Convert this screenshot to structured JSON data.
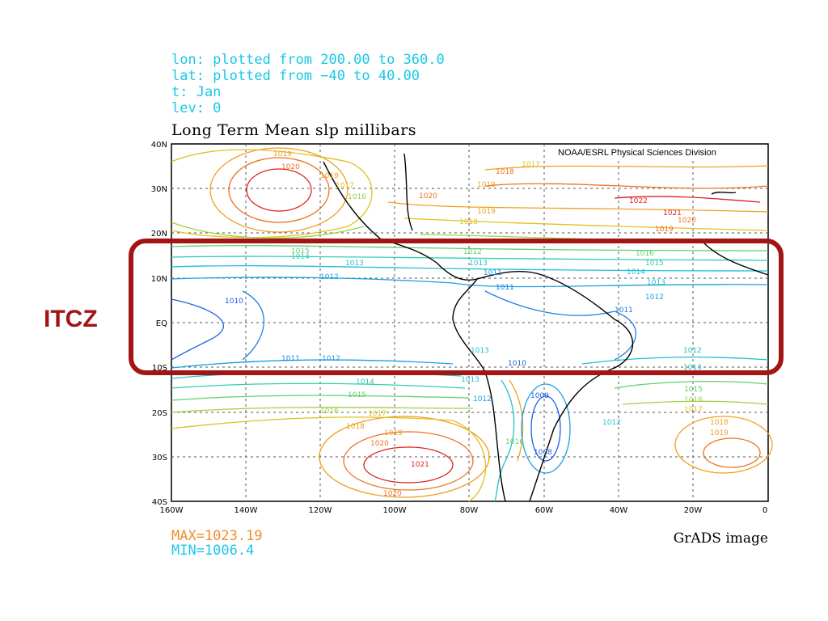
{
  "meta": {
    "lon_line": "lon: plotted from 200.00 to 360.0",
    "lat_line": "lat: plotted from −40 to 40.00",
    "t_line": "t: Jan",
    "lev_line": "lev: 0"
  },
  "title": "Long Term Mean slp millibars",
  "credit": "NOAA/ESRL Physical Sciences Division",
  "stats": {
    "max": "MAX=1023.19",
    "min": "MIN=1006.4"
  },
  "footer": "GrADS image",
  "annotation": {
    "label": "ITCZ",
    "color": "#a31414"
  },
  "axes": {
    "x_ticks": [
      "160W",
      "140W",
      "120W",
      "100W",
      "80W",
      "60W",
      "40W",
      "20W",
      "0"
    ],
    "y_ticks": [
      "40N",
      "30N",
      "20N",
      "10N",
      "EQ",
      "10S",
      "20S",
      "30S",
      "40S"
    ]
  },
  "contour_labels": [
    "1019",
    "1020",
    "1019",
    "1017",
    "1016",
    "1018",
    "1019",
    "1020",
    "1017",
    "1022",
    "1021",
    "1020",
    "1019",
    "1019",
    "1018",
    "1015",
    "1014",
    "1013",
    "1012",
    "1012",
    "1013",
    "1011",
    "1011",
    "1010",
    "1016",
    "1015",
    "1014",
    "1013",
    "1012",
    "1011",
    "1011",
    "1012",
    "1013",
    "1010",
    "1012",
    "1013",
    "1014",
    "1015",
    "1016",
    "1017",
    "1018",
    "1019",
    "1020",
    "1021",
    "1020",
    "1013",
    "1012",
    "1009",
    "1016",
    "1008",
    "1012",
    "1015",
    "1016",
    "1017",
    "1018",
    "1019"
  ],
  "colors": {
    "cyan_text": "#18c8e6",
    "max_color": "#f08c2c",
    "min_color": "#22c4ec",
    "frame": "#a31414"
  }
}
